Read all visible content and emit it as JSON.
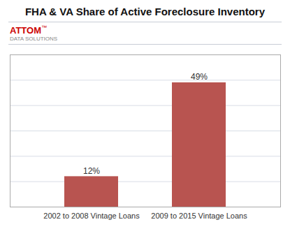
{
  "chart_data": {
    "type": "bar",
    "title": "FHA & VA Share of Active Foreclosure Inventory",
    "annotations": [
      "ATTOM",
      "™",
      "DATA SOLUTIONS"
    ],
    "categories": [
      "2002 to 2008 Vintage Loans",
      "2009 to 2015 Vintage Loans"
    ],
    "values": [
      12,
      49
    ],
    "value_labels": [
      "12%",
      "49%"
    ],
    "data_labels": true,
    "color": "#b85450",
    "ylim": [
      0,
      60
    ],
    "yticks": [
      10,
      20,
      30,
      40,
      50,
      60
    ],
    "grid": true,
    "tick_labels": "x"
  }
}
